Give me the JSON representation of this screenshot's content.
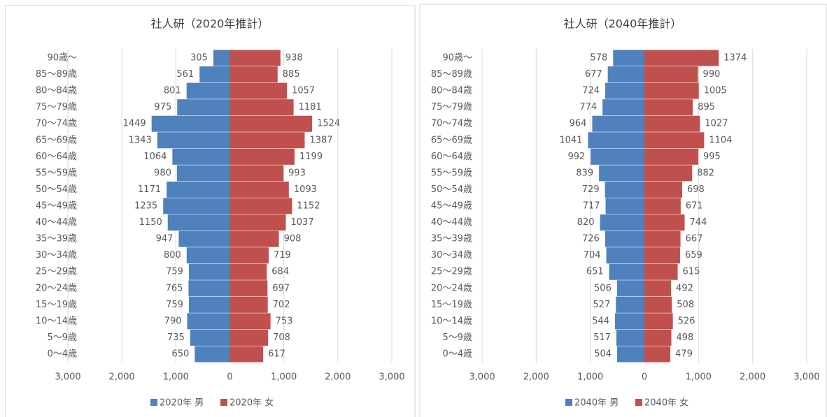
{
  "chart_data": [
    {
      "type": "pyramid",
      "title": "社人研（2020年推計）",
      "categories": [
        "90歳～",
        "85～89歳",
        "80～84歳",
        "75～79歳",
        "70～74歳",
        "65～69歳",
        "60～64歳",
        "55～59歳",
        "50～54歳",
        "45～49歳",
        "40～44歳",
        "35～39歳",
        "30～34歳",
        "25～29歳",
        "20～24歳",
        "15～19歳",
        "10～14歳",
        "5～9歳",
        "0～4歳"
      ],
      "series": [
        {
          "name": "2020年 男",
          "color": "#4f81bd",
          "values": [
            305,
            561,
            801,
            975,
            1449,
            1343,
            1064,
            980,
            1171,
            1235,
            1150,
            947,
            800,
            759,
            765,
            759,
            790,
            735,
            650
          ]
        },
        {
          "name": "2020年 女",
          "color": "#c0504d",
          "values": [
            938,
            885,
            1057,
            1181,
            1524,
            1387,
            1199,
            993,
            1093,
            1152,
            1037,
            908,
            719,
            684,
            697,
            702,
            753,
            708,
            617
          ]
        }
      ],
      "xlim": [
        -3000,
        3000
      ],
      "xticks": [
        {
          "value": -3000,
          "label": "3,000"
        },
        {
          "value": -2000,
          "label": "2,000"
        },
        {
          "value": -1000,
          "label": "1,000"
        },
        0,
        {
          "value": 1000,
          "label": "1,000"
        },
        {
          "value": 2000,
          "label": "2,000"
        },
        {
          "value": 3000,
          "label": "3,000"
        }
      ],
      "grid": true,
      "legend": "bottom"
    },
    {
      "type": "pyramid",
      "title": "社人研（2040年推計）",
      "categories": [
        "90歳～",
        "85～89歳",
        "80～84歳",
        "75～79歳",
        "70～74歳",
        "65～69歳",
        "60～64歳",
        "55～59歳",
        "50～54歳",
        "45～49歳",
        "40～44歳",
        "35～39歳",
        "30～34歳",
        "25～29歳",
        "20～24歳",
        "15～19歳",
        "10～14歳",
        "5～9歳",
        "0～4歳"
      ],
      "series": [
        {
          "name": "2040年 男",
          "color": "#4f81bd",
          "values": [
            578,
            677,
            724,
            774,
            964,
            1041,
            992,
            839,
            729,
            717,
            820,
            726,
            704,
            651,
            506,
            527,
            544,
            517,
            504
          ]
        },
        {
          "name": "2040年 女",
          "color": "#c0504d",
          "values": [
            1374,
            990,
            1005,
            895,
            1027,
            1104,
            995,
            882,
            698,
            671,
            744,
            667,
            659,
            615,
            492,
            508,
            526,
            498,
            479
          ]
        }
      ],
      "xlim": [
        -3000,
        3000
      ],
      "xticks": [
        {
          "value": -3000,
          "label": "3,000"
        },
        {
          "value": -2000,
          "label": "2,000"
        },
        {
          "value": -1000,
          "label": "1,000"
        },
        0,
        {
          "value": 1000,
          "label": "1,000"
        },
        {
          "value": 2000,
          "label": "2,000"
        },
        {
          "value": 3000,
          "label": "3,000"
        }
      ],
      "grid": true,
      "legend": "bottom"
    }
  ]
}
